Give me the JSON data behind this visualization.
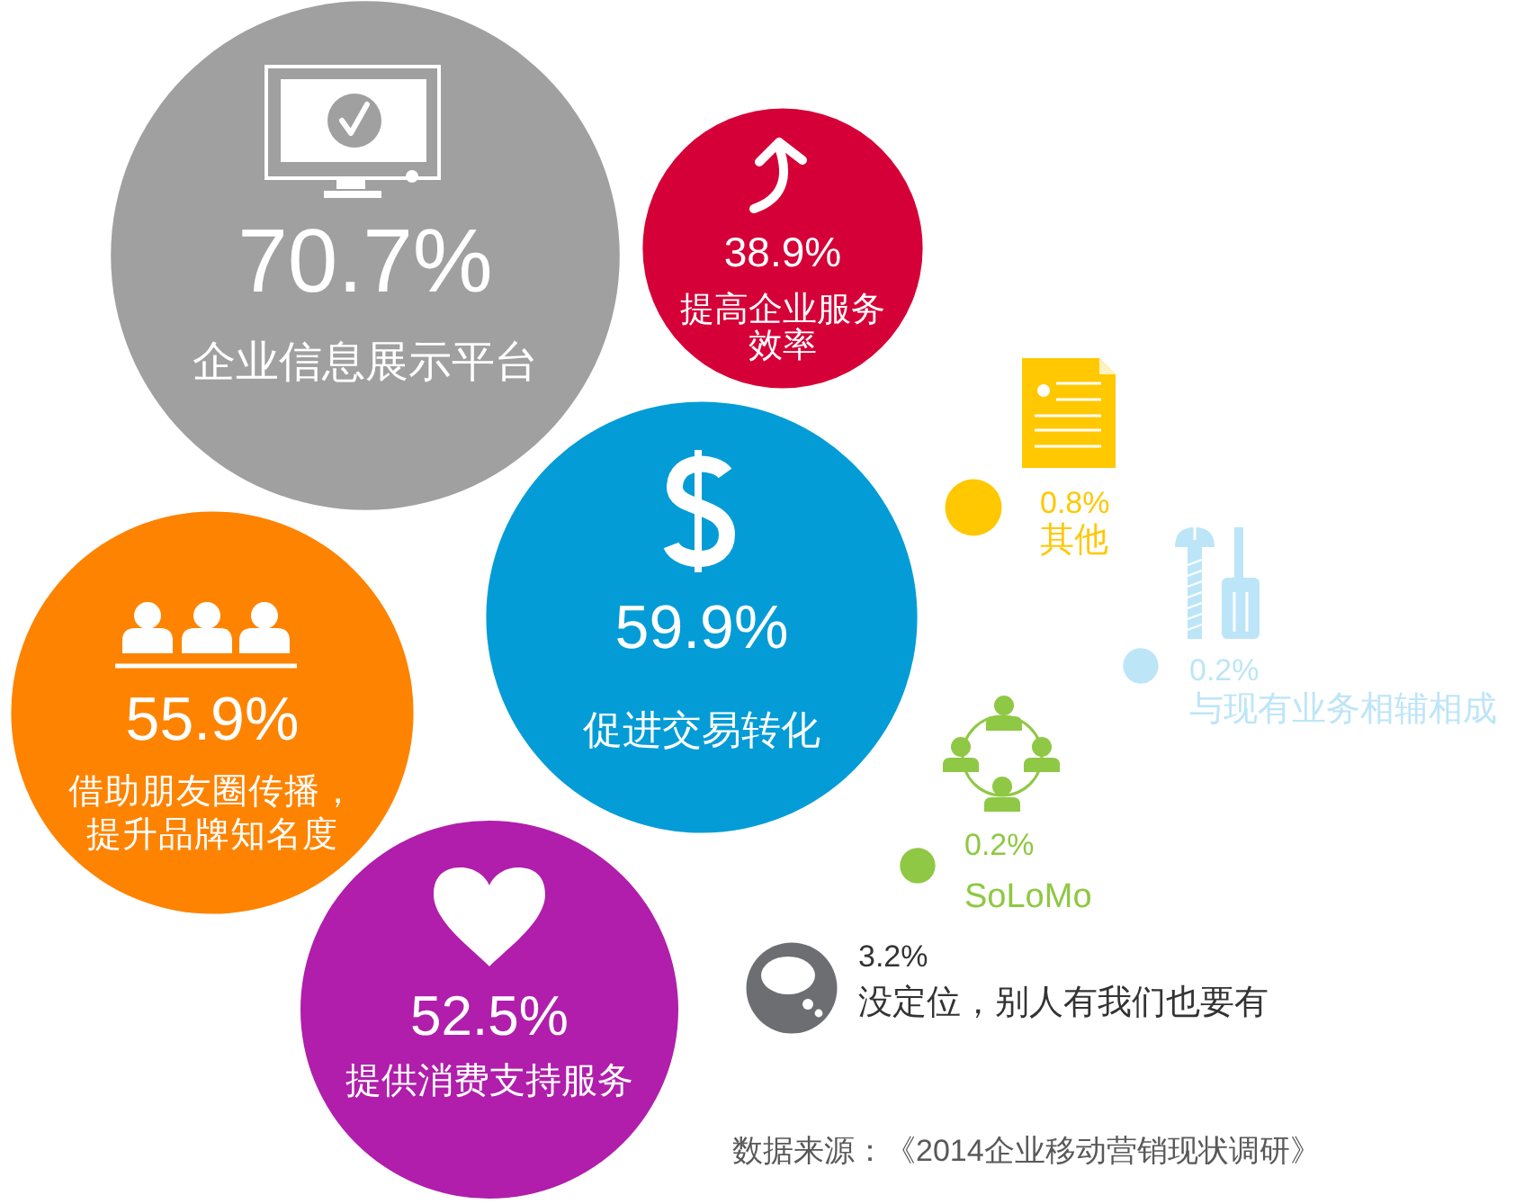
{
  "chart_data": {
    "type": "other",
    "categories": [
      "企业信息展示平台",
      "提高企业服务效率",
      "促进交易转化",
      "其他",
      "与现有业务相辅相成",
      "借助朋友圈传播，提升品牌知名度",
      "SoLoMo",
      "提供消费支持服务",
      "没定位，别人有我们也要有"
    ],
    "values": [
      70.7,
      38.9,
      59.9,
      0.8,
      0.2,
      55.9,
      0.2,
      52.5,
      3.2
    ],
    "value_labels": [
      "70.7%",
      "38.9%",
      "59.9%",
      "0.8%",
      "0.2%",
      "55.9%",
      "0.2%",
      "52.5%",
      "3.2%"
    ],
    "colors": [
      "#a0a0a0",
      "#d50037",
      "#049cd6",
      "#ffc800",
      "#bde5f8",
      "#fe8300",
      "#8fc844",
      "#b01eab",
      "#6d6e71"
    ],
    "annotations": [
      "数据来源：《2014企业移动营销现状调研》"
    ]
  }
}
